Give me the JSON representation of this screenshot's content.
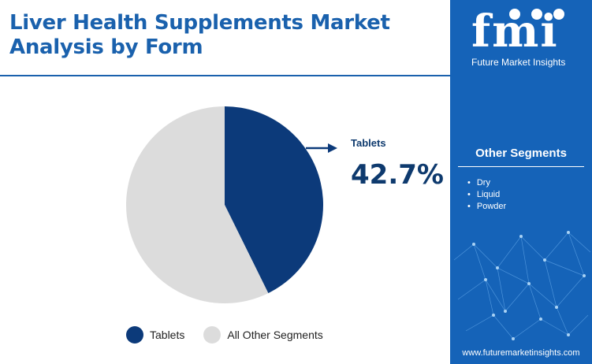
{
  "header": {
    "title": "Liver Health Supplements Market Analysis by Form"
  },
  "chart_data": {
    "type": "pie",
    "slices": [
      {
        "label": "Tablets",
        "value": 42.7,
        "color": "#0c3a7a"
      },
      {
        "label": "All Other Segments",
        "value": 57.3,
        "color": "#dcdcdc"
      }
    ],
    "callout": {
      "label": "Tablets",
      "value_text": "42.7%"
    },
    "legend": {
      "position": "bottom"
    }
  },
  "legend": {
    "items": [
      {
        "label": "Tablets",
        "color": "#0c3a7a"
      },
      {
        "label": "All Other Segments",
        "color": "#dcdcdc"
      }
    ]
  },
  "sidebar": {
    "brand_logo": "fmi",
    "brand_name": "Future Market Insights",
    "segments_title": "Other Segments",
    "segments": [
      "Dry",
      "Liquid",
      "Powder"
    ],
    "website": "www.futuremarketinsights.com",
    "background_color": "#1563b8"
  }
}
